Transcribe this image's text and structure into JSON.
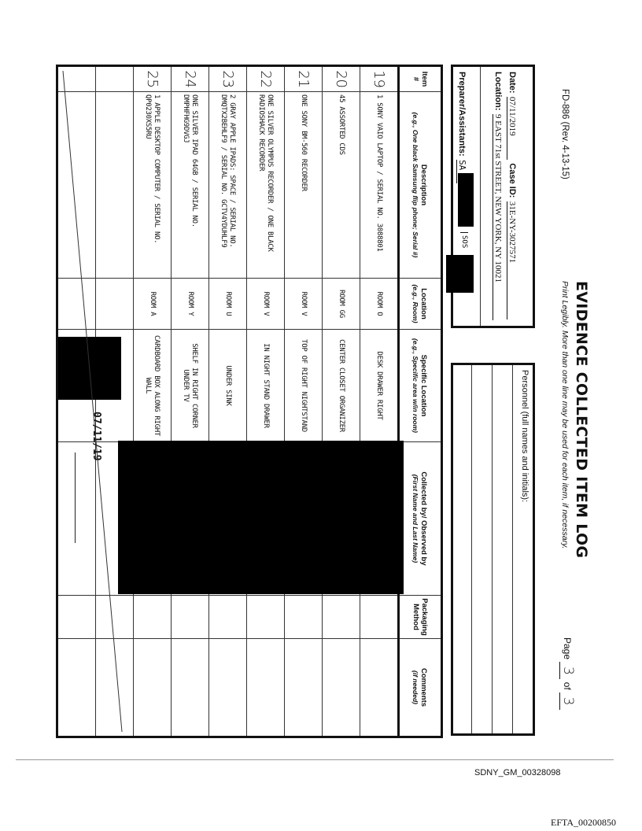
{
  "form": {
    "form_id": "FD-886 (Rev. 4-13-15)",
    "title": "EVIDENCE COLLECTED ITEM LOG",
    "subtitle": "Print Legibly. More than one line may be used for each item, if necessary.",
    "page_label": "Page",
    "page_num": "3",
    "page_of_label": "of",
    "page_total": "3",
    "date_label": "Date:",
    "date": "07/11/2019",
    "case_label": "Case ID:",
    "case_id": "31E-NY-3027571",
    "location_label": "Location:",
    "location": "9 EAST 71st STREET, NEW YORK, NY 10021",
    "preparer_label": "Preparer/Assistants:",
    "preparer": [
      "SA",
      "SOS"
    ],
    "personnel_label": "Personnel (full names and initials):"
  },
  "table": {
    "headers": [
      {
        "title": "Item #",
        "hint": ""
      },
      {
        "title": "Description",
        "hint": "(e.g., One black Samsung flip phone; Serial #)"
      },
      {
        "title": "Location",
        "hint": "(e.g., Room)"
      },
      {
        "title": "Specific Location",
        "hint": "(e.g., Specific area w/in room)"
      },
      {
        "title": "Collected by/ Observed by",
        "hint": "(First Name and Last Name)"
      },
      {
        "title": "Packaging Method",
        "hint": ""
      },
      {
        "title": "Comments",
        "hint": "(if needed)"
      }
    ],
    "rows": [
      {
        "item": "19",
        "description": "1 SONY VAIO LAPTOP / SERIAL NO. 3088801",
        "location": "ROOM O",
        "specific": "DESK DRAWER RIGHT"
      },
      {
        "item": "20",
        "description": "45 ASSORTED CDs",
        "location": "ROOM GG",
        "specific": "CENTER CLOSET ORGANIZER"
      },
      {
        "item": "21",
        "description": "ONE SONY BM-560 RECORDER",
        "location": "ROOM V",
        "specific": "TOP OF RIGHT NIGHTSTAND"
      },
      {
        "item": "22",
        "description": "ONE SILVER OLYMPUS RECORDER / ONE BLACK RADIOSHACK RECORDER",
        "location": "ROOM V",
        "specific": "IN NIGHT STAND DRAWER"
      },
      {
        "item": "23",
        "description": "2 GRAY APPLE IPADS: SPACE / SERIAL NO. DMQTX2BEHLF9 / SERIAL NO. GCTV4YDUHLF9",
        "location": "ROOM U",
        "specific": "UNDER SINK"
      },
      {
        "item": "24",
        "description": "ONE SILVER IPAD 64GB / SERIAL NO. DMPHFHG9DVGJ",
        "location": "ROOM Y",
        "specific": "SHELF IN RIGHT CORNER UNDER TV"
      },
      {
        "item": "25",
        "description": "1 APPLE DESKTOP COMPUTER / SERIAL NO. QP0230XS5RU",
        "location": "ROOM A",
        "specific": "CARDBOARD BOX ALONG RIGHT WALL"
      },
      {
        "item": "",
        "description": "",
        "location": "",
        "specific": ""
      },
      {
        "item": "",
        "description": "",
        "location": "",
        "specific": ""
      }
    ]
  },
  "signature_date": "07/11/19",
  "footer": {
    "bates": "SDNY_GM_00328098",
    "efta": "EFTA_00200850"
  }
}
